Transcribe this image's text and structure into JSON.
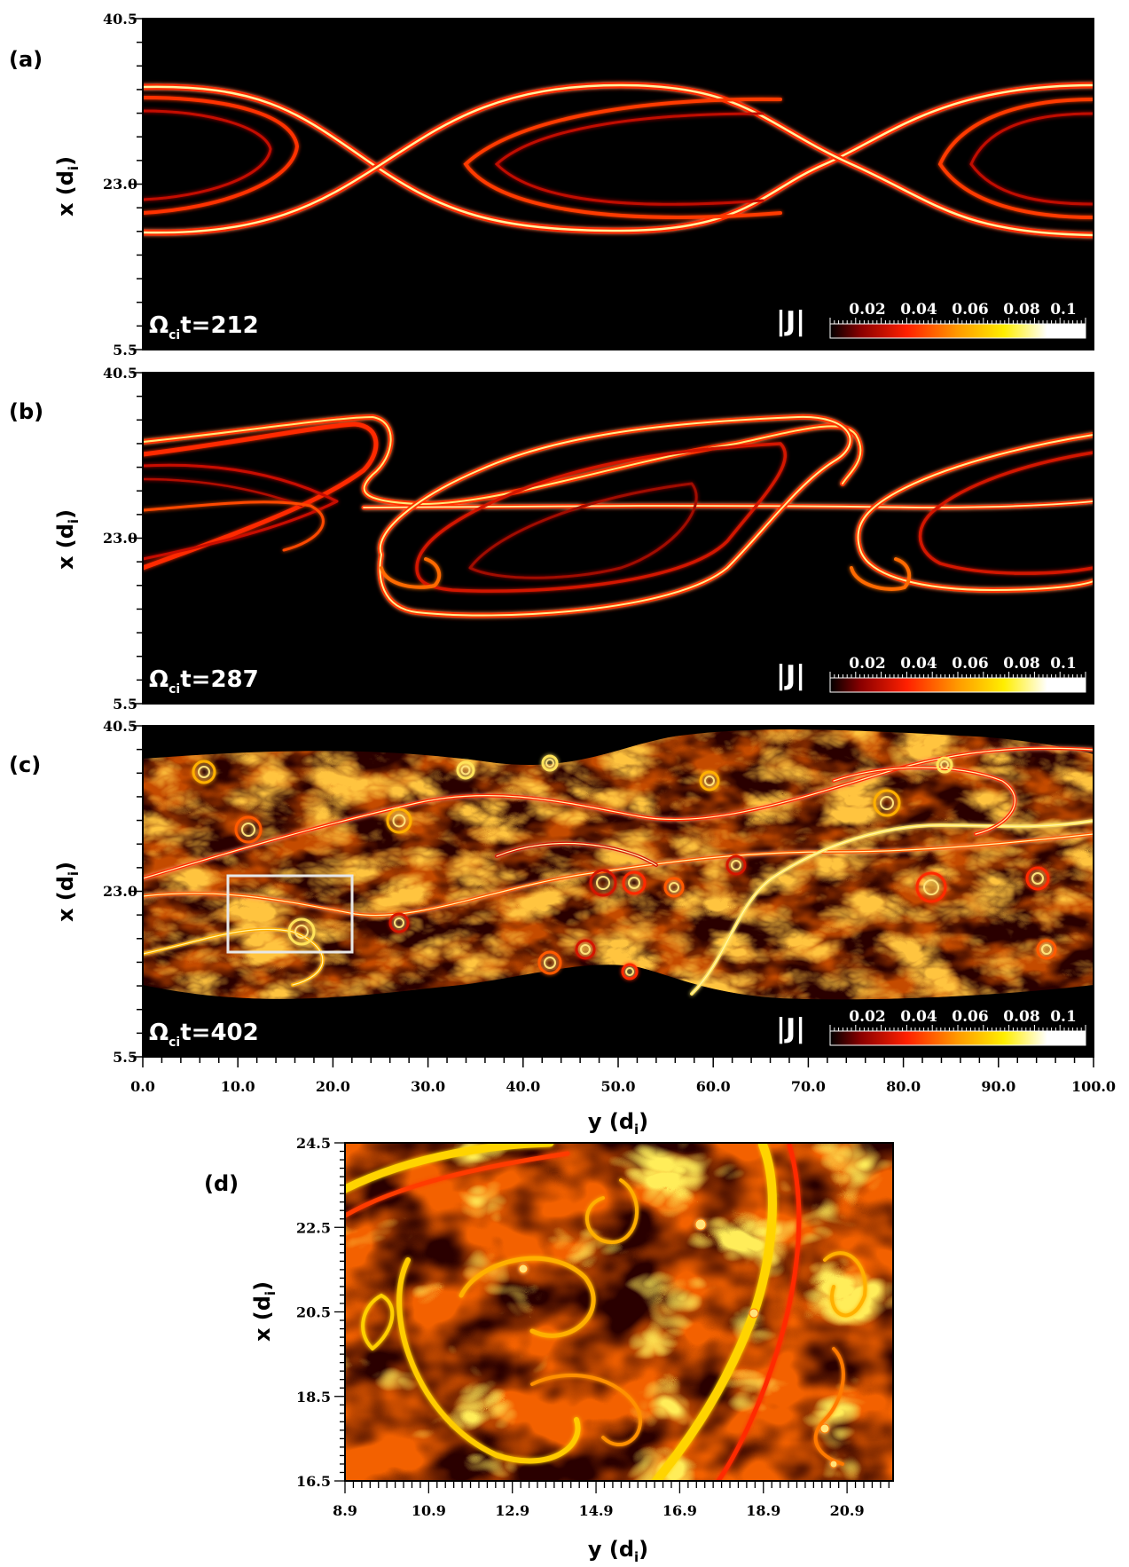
{
  "figure": {
    "panels": [
      {
        "letter": "(a)",
        "time_label": "Ω_ci t=212",
        "time_value": "212",
        "colorbar_title": "|J|",
        "colorbar_ticks": [
          "0.02",
          "0.04",
          "0.06",
          "0.08",
          "0.1"
        ],
        "ylabel": "x (d_i)",
        "yticks": [
          "40.5",
          "23.0",
          "5.5"
        ]
      },
      {
        "letter": "(b)",
        "time_label": "Ω_ci t=287",
        "time_value": "287",
        "colorbar_title": "|J|",
        "colorbar_ticks": [
          "0.02",
          "0.04",
          "0.06",
          "0.08",
          "0.1"
        ],
        "ylabel": "x (d_i)",
        "yticks": [
          "40.5",
          "23.0",
          "5.5"
        ]
      },
      {
        "letter": "(c)",
        "time_label": "Ω_ci t=402",
        "time_value": "402",
        "colorbar_title": "|J|",
        "colorbar_ticks": [
          "0.02",
          "0.04",
          "0.06",
          "0.08",
          "0.1"
        ],
        "ylabel": "x (d_i)",
        "yticks": [
          "40.5",
          "23.0",
          "5.5"
        ],
        "xticks": [
          "0.0",
          "10.0",
          "20.0",
          "30.0",
          "40.0",
          "50.0",
          "60.0",
          "70.0",
          "80.0",
          "90.0",
          "100.0"
        ],
        "xlabel": "y (d_i)"
      },
      {
        "letter": "(d)",
        "ylabel": "x (d_i)",
        "xlabel": "y (d_i)",
        "yticks": [
          "24.5",
          "22.5",
          "20.5",
          "18.5",
          "16.5"
        ],
        "xticks": [
          "8.9",
          "10.9",
          "12.9",
          "14.9",
          "16.9",
          "18.9",
          "20.9"
        ]
      }
    ]
  },
  "chart_data": [
    {
      "type": "heatmap",
      "panel": "(a)",
      "quantity": "|J|",
      "xlabel": "y (d_i)",
      "ylabel": "x (d_i)",
      "xlim": [
        0,
        100
      ],
      "ylim": [
        5.5,
        40.5
      ],
      "colorbar": [
        0.02,
        0.04,
        0.06,
        0.08,
        0.1
      ],
      "time": 212
    },
    {
      "type": "heatmap",
      "panel": "(b)",
      "quantity": "|J|",
      "xlabel": "y (d_i)",
      "ylabel": "x (d_i)",
      "xlim": [
        0,
        100
      ],
      "ylim": [
        5.5,
        40.5
      ],
      "colorbar": [
        0.02,
        0.04,
        0.06,
        0.08,
        0.1
      ],
      "time": 287
    },
    {
      "type": "heatmap",
      "panel": "(c)",
      "quantity": "|J|",
      "xlabel": "y (d_i)",
      "ylabel": "x (d_i)",
      "xlim": [
        0,
        100
      ],
      "ylim": [
        5.5,
        40.5
      ],
      "colorbar": [
        0.02,
        0.04,
        0.06,
        0.08,
        0.1
      ],
      "time": 402,
      "inset_box": {
        "y_range": [
          8.9,
          22.0
        ],
        "x_range": [
          16.5,
          24.5
        ]
      }
    },
    {
      "type": "heatmap",
      "panel": "(d)",
      "quantity": "|J|",
      "xlabel": "y (d_i)",
      "ylabel": "x (d_i)",
      "xlim": [
        8.9,
        22.0
      ],
      "ylim": [
        16.5,
        24.5
      ]
    }
  ],
  "colors": {
    "background": "#000000",
    "low": "#5a0000",
    "mid": "#ff2a00",
    "high": "#ffe600",
    "max": "#ffffff",
    "inset_box": "#e8e8e8"
  }
}
